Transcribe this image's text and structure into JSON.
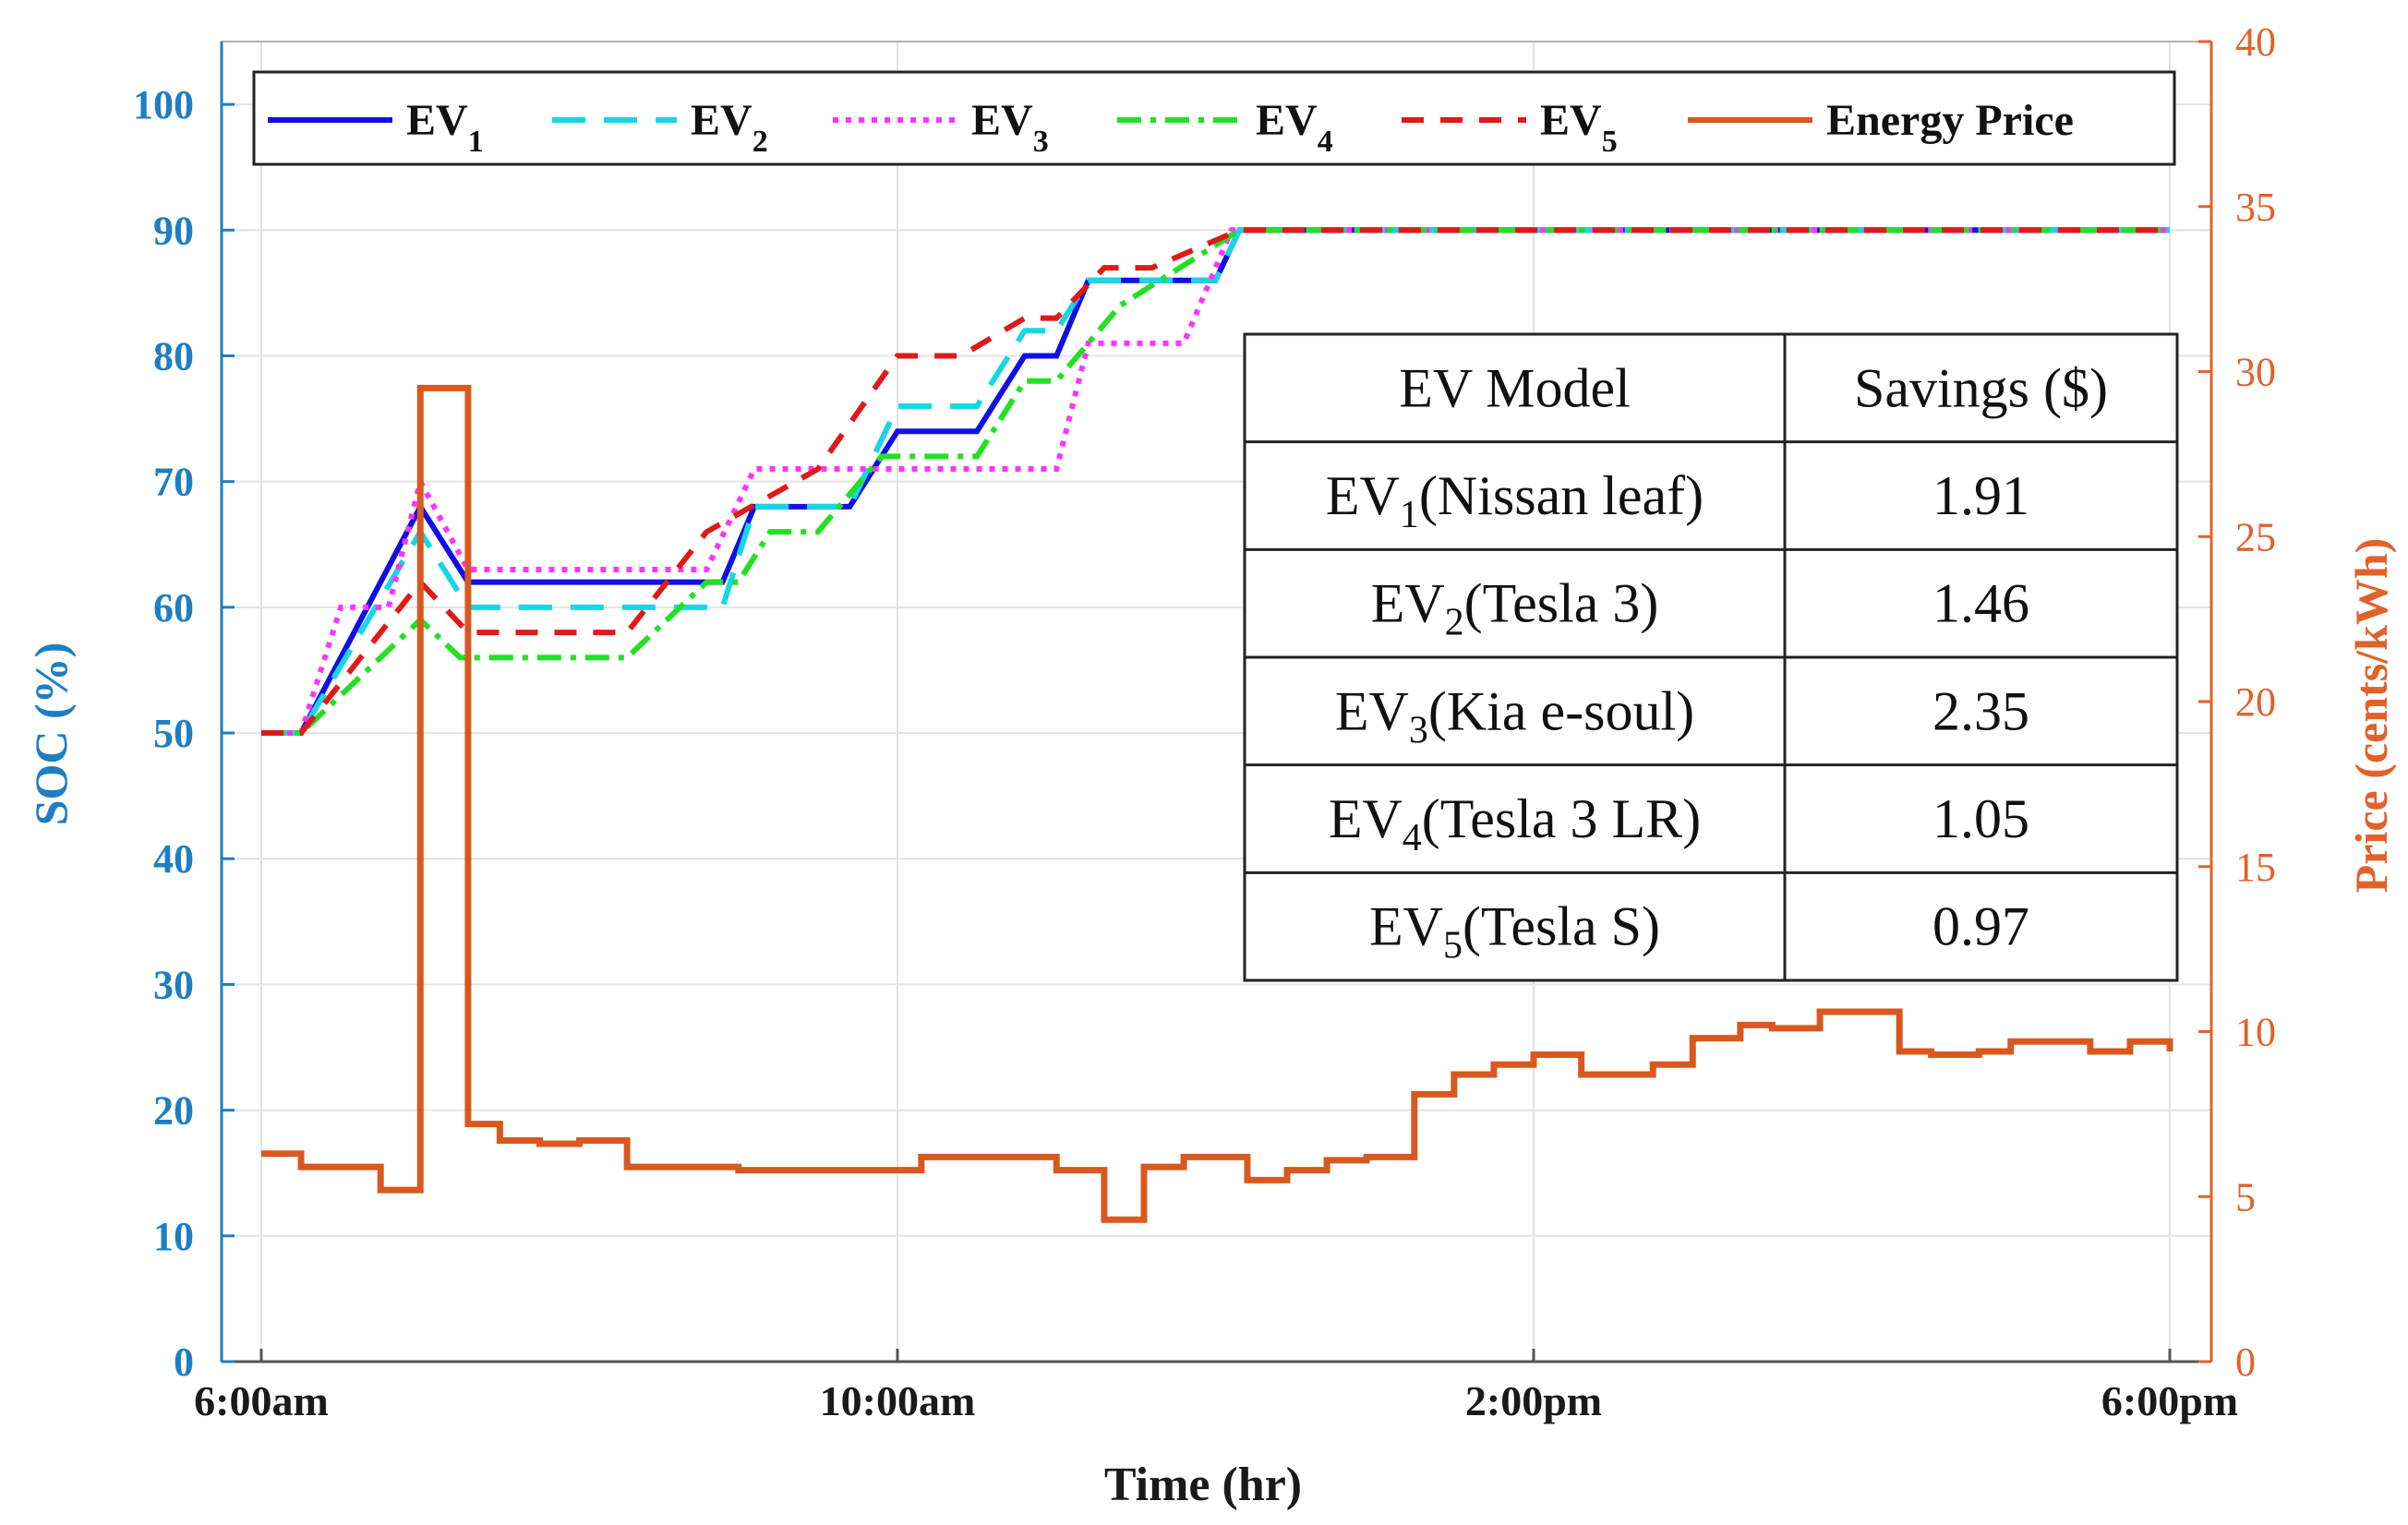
{
  "chart_data": {
    "type": "line",
    "xlabel": "Time (hr)",
    "ylabel_left": "SOC (%)",
    "ylabel_right": "Price (cents/kWh)",
    "x_range": [
      6,
      18
    ],
    "ylim_left": [
      0,
      105
    ],
    "ylim_right": [
      0,
      40
    ],
    "x_ticks": [
      {
        "value": 6,
        "label": "6:00am"
      },
      {
        "value": 10,
        "label": "10:00am"
      },
      {
        "value": 14,
        "label": "2:00pm"
      },
      {
        "value": 18,
        "label": "6:00pm"
      }
    ],
    "y_ticks_left": [
      0,
      10,
      20,
      30,
      40,
      50,
      60,
      70,
      80,
      90,
      100
    ],
    "y_ticks_right": [
      0,
      5,
      10,
      15,
      20,
      25,
      30,
      35,
      40
    ],
    "grid": true,
    "legend_position": "top",
    "series": [
      {
        "name": "EV",
        "sub": "1",
        "axis": "left",
        "color": "#1010e6",
        "dash": "solid",
        "x": [
          6,
          6.25,
          7.0,
          7.3,
          8.9,
          9.1,
          9.7,
          10.0,
          10.5,
          10.8,
          11.0,
          11.2,
          11.5,
          12.0,
          12.15
        ],
        "y": [
          50,
          50,
          68,
          62,
          62,
          68,
          68,
          74,
          74,
          80,
          80,
          86,
          86,
          86,
          90
        ]
      },
      {
        "name": "EV",
        "sub": "2",
        "axis": "left",
        "color": "#17d6e6",
        "dash": "long-dash",
        "x": [
          6,
          6.25,
          7.0,
          7.3,
          8.9,
          9.1,
          9.7,
          10.0,
          10.5,
          10.8,
          11.0,
          11.2,
          11.5,
          12.0,
          12.15
        ],
        "y": [
          50,
          50,
          66,
          60,
          60,
          68,
          68,
          76,
          76,
          82,
          82,
          86,
          86,
          86,
          90
        ]
      },
      {
        "name": "EV",
        "sub": "3",
        "axis": "left",
        "color": "#ff33ff",
        "dash": "dotted",
        "x": [
          6,
          6.25,
          6.5,
          6.8,
          7.0,
          7.3,
          8.8,
          9.1,
          11.0,
          11.2,
          11.8,
          12.1
        ],
        "y": [
          50,
          50,
          60,
          60,
          70,
          63,
          63,
          71,
          71,
          81,
          81,
          90
        ]
      },
      {
        "name": "EV",
        "sub": "4",
        "axis": "left",
        "color": "#22e022",
        "dash": "dash-dot",
        "x": [
          6,
          6.25,
          7.0,
          7.25,
          8.3,
          8.8,
          9.0,
          9.2,
          9.5,
          9.9,
          10.5,
          10.8,
          11.0,
          11.4,
          11.9,
          12.15
        ],
        "y": [
          50,
          50,
          59,
          56,
          56,
          62,
          62,
          66,
          66,
          72,
          72,
          78,
          78,
          84,
          88,
          90
        ]
      },
      {
        "name": "EV",
        "sub": "5",
        "axis": "left",
        "color": "#e01919",
        "dash": "dashed",
        "x": [
          6,
          6.25,
          7.0,
          7.3,
          8.3,
          8.8,
          9.5,
          10.0,
          10.4,
          10.8,
          11.0,
          11.3,
          11.6,
          12.15
        ],
        "y": [
          50,
          50,
          62,
          58,
          58,
          66,
          71,
          80,
          80,
          83,
          83,
          87,
          87,
          90
        ]
      },
      {
        "name": "Energy Price",
        "axis": "right",
        "color": "#d9581f",
        "dash": "solid",
        "step": true,
        "x": [
          6,
          6.25,
          6.5,
          6.75,
          7.0,
          7.3,
          7.5,
          7.75,
          8.0,
          8.3,
          8.9,
          9.0,
          10.0,
          10.15,
          11.0,
          11.3,
          11.55,
          11.8,
          12.2,
          12.45,
          12.7,
          12.95,
          13.25,
          13.5,
          13.75,
          14.0,
          14.3,
          14.55,
          14.75,
          15.0,
          15.3,
          15.5,
          15.8,
          16.0,
          16.1,
          16.3,
          16.5,
          16.8,
          17.0,
          17.3,
          17.5,
          17.75,
          18.0
        ],
        "y": [
          6.3,
          5.9,
          5.9,
          5.2,
          29.5,
          7.2,
          6.7,
          6.6,
          6.7,
          5.9,
          5.9,
          5.8,
          5.8,
          6.2,
          5.8,
          4.3,
          5.9,
          6.2,
          5.5,
          5.8,
          6.1,
          6.2,
          8.1,
          8.7,
          9.0,
          9.3,
          8.7,
          8.7,
          9.0,
          9.8,
          10.2,
          10.1,
          10.6,
          10.6,
          10.6,
          9.4,
          9.3,
          9.4,
          9.7,
          9.7,
          9.4,
          9.7,
          9.4
        ]
      }
    ],
    "table": {
      "headers": [
        "EV Model",
        "Savings ($)"
      ],
      "rows": [
        {
          "ev": "EV",
          "sub": "1",
          "model": "(Nissan leaf)",
          "savings": "1.91"
        },
        {
          "ev": "EV",
          "sub": "2",
          "model": "(Tesla 3)",
          "savings": "1.46"
        },
        {
          "ev": "EV",
          "sub": "3",
          "model": "(Kia e-soul)",
          "savings": "2.35"
        },
        {
          "ev": "EV",
          "sub": "4",
          "model": "(Tesla 3 LR)",
          "savings": "1.05"
        },
        {
          "ev": "EV",
          "sub": "5",
          "model": "(Tesla S)",
          "savings": "0.97"
        }
      ]
    }
  }
}
